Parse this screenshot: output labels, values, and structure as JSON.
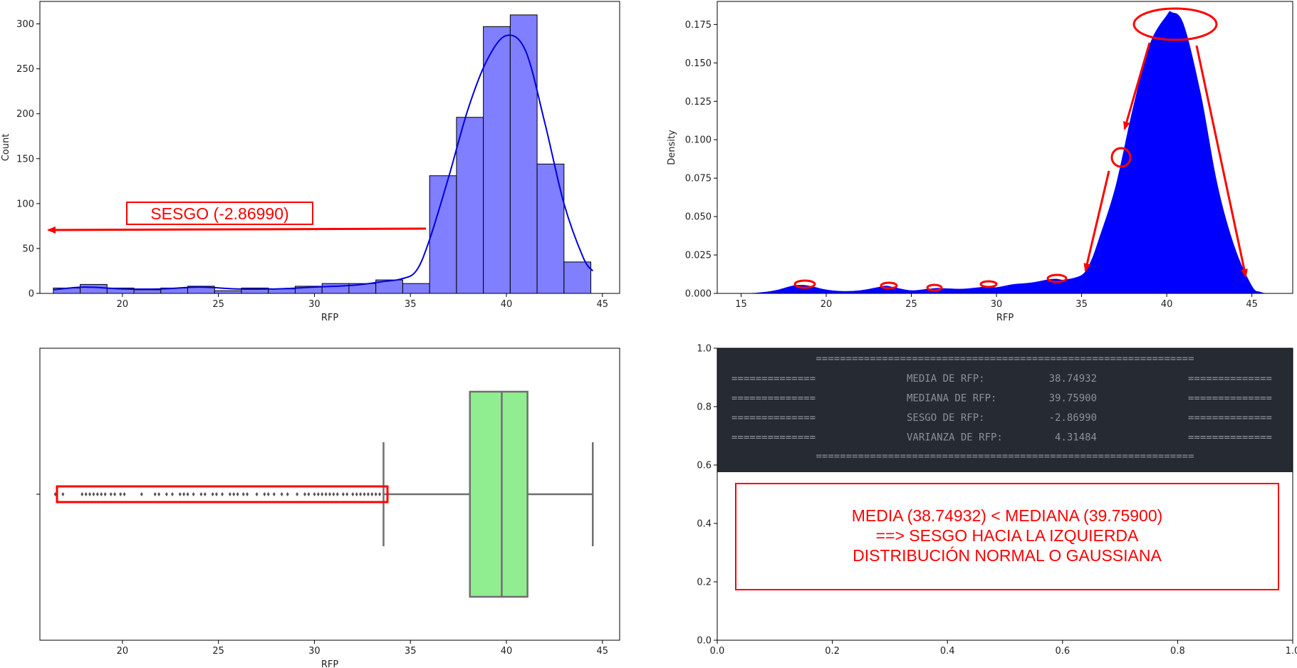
{
  "colors": {
    "hist_fill": "#7f7fff",
    "kde_line": "#0000dd",
    "density_fill": "#0000ff",
    "box_fill": "#90ee90",
    "annotation": "#ff0000",
    "panel_dark": "#262a33",
    "panel_text": "#8c9099"
  },
  "chart_data": [
    {
      "type": "bar",
      "subtype": "histogram-with-kde",
      "xlabel": "RFP",
      "ylabel": "Count",
      "xlim": [
        15.7,
        45.9
      ],
      "ylim": [
        0,
        325
      ],
      "xticks": [
        20,
        25,
        30,
        35,
        40,
        45
      ],
      "yticks": [
        0,
        50,
        100,
        150,
        200,
        250,
        300
      ],
      "bins": [
        {
          "x0": 16.4,
          "x1": 17.8,
          "count": 6
        },
        {
          "x0": 17.8,
          "x1": 19.2,
          "count": 10
        },
        {
          "x0": 19.2,
          "x1": 20.6,
          "count": 6
        },
        {
          "x0": 20.6,
          "x1": 22.0,
          "count": 4
        },
        {
          "x0": 22.0,
          "x1": 23.4,
          "count": 6
        },
        {
          "x0": 23.4,
          "x1": 24.8,
          "count": 8
        },
        {
          "x0": 24.8,
          "x1": 26.2,
          "count": 3
        },
        {
          "x0": 26.2,
          "x1": 27.6,
          "count": 6
        },
        {
          "x0": 27.6,
          "x1": 29.0,
          "count": 5
        },
        {
          "x0": 29.0,
          "x1": 30.4,
          "count": 8
        },
        {
          "x0": 30.4,
          "x1": 31.8,
          "count": 11
        },
        {
          "x0": 31.8,
          "x1": 33.2,
          "count": 11
        },
        {
          "x0": 33.2,
          "x1": 34.6,
          "count": 15
        },
        {
          "x0": 34.6,
          "x1": 36.0,
          "count": 11
        },
        {
          "x0": 36.0,
          "x1": 37.4,
          "count": 131
        },
        {
          "x0": 37.4,
          "x1": 38.8,
          "count": 196
        },
        {
          "x0": 38.8,
          "x1": 40.2,
          "count": 297
        },
        {
          "x0": 40.2,
          "x1": 41.6,
          "count": 310
        },
        {
          "x0": 41.6,
          "x1": 43.0,
          "count": 144
        },
        {
          "x0": 43.0,
          "x1": 44.4,
          "count": 35
        }
      ],
      "kde": {
        "x": [
          16.4,
          18,
          20,
          22,
          24,
          26,
          28,
          30,
          32,
          33.5,
          34.5,
          35.3,
          36,
          37,
          38,
          39,
          40,
          41,
          42,
          43,
          44,
          44.5
        ],
        "y": [
          4,
          7,
          5,
          5,
          7,
          5,
          5,
          7,
          9,
          13,
          16,
          25,
          60,
          130,
          205,
          260,
          287,
          270,
          190,
          100,
          40,
          25
        ]
      },
      "annotation": "SESGO (-2.86990)"
    },
    {
      "type": "area",
      "subtype": "kde-density",
      "xlabel": "RFP",
      "ylabel": "Density",
      "xlim": [
        13.6,
        47.4
      ],
      "ylim": [
        0,
        0.19
      ],
      "xticks": [
        15,
        20,
        25,
        30,
        35,
        40,
        45
      ],
      "yticks": [
        0.0,
        0.025,
        0.05,
        0.075,
        0.1,
        0.125,
        0.15,
        0.175
      ],
      "ytick_labels": [
        "0.000",
        "0.025",
        "0.050",
        "0.075",
        "0.100",
        "0.125",
        "0.150",
        "0.175"
      ],
      "x": [
        15,
        16,
        17,
        18,
        18.5,
        19,
        20,
        21,
        22,
        23,
        23.5,
        24,
        25,
        26,
        26.5,
        27,
        28,
        29,
        29.5,
        30,
        31,
        32,
        33,
        33.5,
        34,
        35,
        35.5,
        36,
        37,
        38,
        39,
        40,
        40.3,
        41,
        42,
        43,
        44,
        45,
        45.5,
        46
      ],
      "y": [
        0.0,
        0.0005,
        0.002,
        0.005,
        0.0055,
        0.005,
        0.0025,
        0.0015,
        0.002,
        0.004,
        0.005,
        0.004,
        0.002,
        0.003,
        0.0035,
        0.0033,
        0.003,
        0.004,
        0.0045,
        0.004,
        0.006,
        0.007,
        0.009,
        0.0095,
        0.009,
        0.012,
        0.02,
        0.035,
        0.07,
        0.12,
        0.162,
        0.181,
        0.183,
        0.175,
        0.13,
        0.07,
        0.03,
        0.005,
        0.001,
        0.0
      ]
    },
    {
      "type": "box",
      "xlabel": "RFP",
      "xlim": [
        15.7,
        45.9
      ],
      "xticks": [
        20,
        25,
        30,
        35,
        40,
        45
      ],
      "whisker_low": 33.6,
      "q1": 38.1,
      "median": 39.759,
      "q3": 41.1,
      "whisker_high": 44.5,
      "outliers": [
        16.5,
        16.9,
        17.9,
        18.1,
        18.3,
        18.5,
        18.7,
        18.9,
        19.1,
        19.4,
        19.6,
        19.9,
        20.1,
        21.0,
        21.7,
        21.9,
        22.3,
        22.6,
        23.0,
        23.2,
        23.4,
        23.7,
        24.1,
        24.3,
        24.7,
        24.9,
        25.2,
        25.6,
        25.8,
        26.0,
        26.3,
        26.5,
        27.0,
        27.4,
        27.6,
        27.9,
        28.3,
        28.6,
        29.1,
        29.5,
        29.7,
        30.0,
        30.2,
        30.4,
        30.6,
        30.8,
        31.0,
        31.2,
        31.5,
        31.7,
        32.0,
        32.2,
        32.4,
        32.6,
        32.8,
        33.0,
        33.2,
        33.4
      ]
    },
    {
      "type": "table",
      "subtype": "stats-panel",
      "xlim": [
        0,
        1
      ],
      "ylim": [
        0,
        1
      ],
      "xticks": [
        0.0,
        0.2,
        0.4,
        0.6,
        0.8,
        1.0
      ],
      "xtick_labels": [
        "0.0",
        "0.2",
        "0.4",
        "0.6",
        "0.8",
        "1.0"
      ],
      "yticks": [
        0.0,
        0.2,
        0.4,
        0.6,
        0.8,
        1.0
      ],
      "ytick_labels": [
        "0.0",
        "0.2",
        "0.4",
        "0.6",
        "0.8",
        "1.0"
      ],
      "rows": [
        {
          "label": "MEDIA DE RFP:",
          "value": "38.74932"
        },
        {
          "label": "MEDIANA DE RFP:",
          "value": "39.75900"
        },
        {
          "label": "SESGO DE RFP:",
          "value": "-2.86990"
        },
        {
          "label": "VARIANZA DE RFP:",
          "value": "4.31484"
        }
      ],
      "rule_full": "===============================================================",
      "rule_short": "==============",
      "conclusion": [
        "MEDIA (38.74932) < MEDIANA (39.75900)",
        "==> SESGO HACIA LA IZQUIERDA",
        "DISTRIBUCIÓN NORMAL O GAUSSIANA"
      ]
    }
  ]
}
